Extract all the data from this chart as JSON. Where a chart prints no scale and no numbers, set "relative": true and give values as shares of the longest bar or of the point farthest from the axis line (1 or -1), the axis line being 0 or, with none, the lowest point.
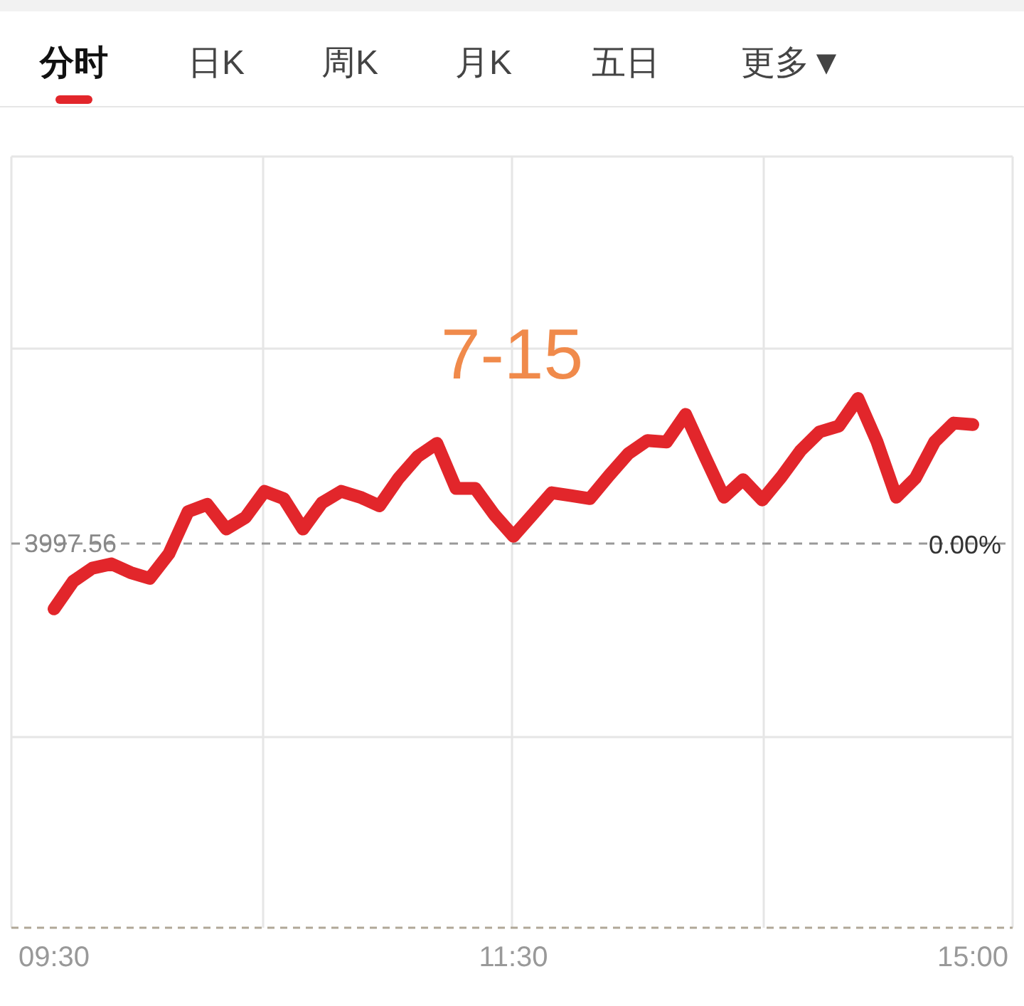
{
  "chart_data": {
    "type": "line",
    "title": "7-15",
    "categories": [
      "09:30",
      null,
      null,
      null,
      null,
      null,
      null,
      null,
      null,
      null,
      null,
      null,
      null,
      null,
      null,
      null,
      null,
      null,
      null,
      null,
      null,
      null,
      null,
      null,
      "11:30",
      null,
      null,
      null,
      null,
      null,
      null,
      null,
      null,
      null,
      null,
      null,
      null,
      null,
      null,
      null,
      null,
      null,
      null,
      null,
      null,
      null,
      null,
      null,
      "15:00"
    ],
    "series": [
      {
        "color": "#e2262b",
        "values": [
          -0.45,
          -0.26,
          -0.17,
          -0.14,
          -0.2,
          -0.24,
          -0.07,
          0.22,
          0.27,
          0.1,
          0.18,
          0.36,
          0.31,
          0.1,
          0.28,
          0.36,
          0.32,
          0.26,
          0.45,
          0.6,
          0.69,
          0.38,
          0.38,
          0.2,
          0.05,
          0.2,
          0.35,
          0.33,
          0.31,
          0.47,
          0.62,
          0.71,
          0.7,
          0.89,
          0.6,
          0.32,
          0.44,
          0.3,
          0.46,
          0.64,
          0.77,
          0.81,
          1.0,
          0.7,
          0.32,
          0.45,
          0.7,
          0.83,
          0.82
        ]
      }
    ],
    "relative": true,
    "ref_lines": [
      {
        "axis": "y",
        "value": 0,
        "color": "#999999",
        "line_style": "dashed"
      }
    ],
    "annotations": [
      "分时",
      "日K",
      "周K",
      "月K",
      "五日",
      "更多▼",
      "3997.56",
      "0.00%"
    ],
    "grid": true,
    "line_style": "solid"
  }
}
